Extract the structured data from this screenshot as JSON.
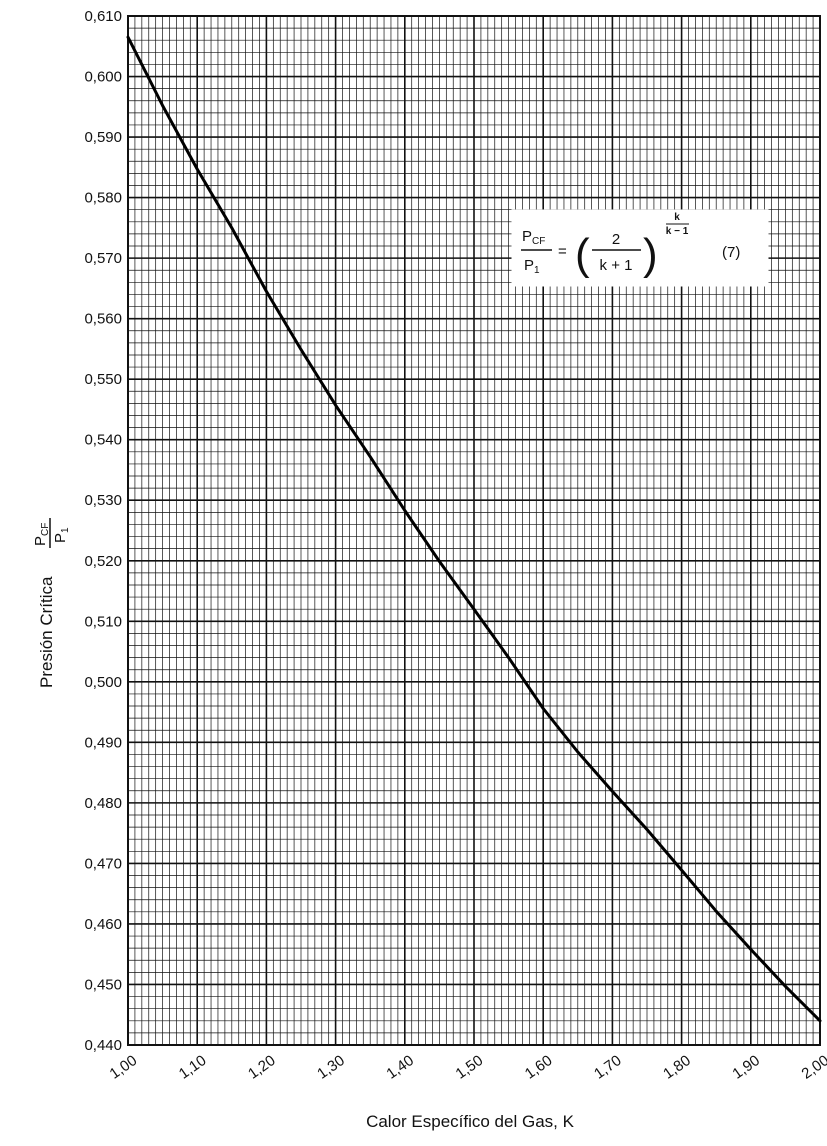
{
  "chart_data": {
    "type": "line",
    "xlabel": "Calor Específico del Gas, K",
    "ylabel_prefix": "Presión Crítica",
    "ylabel_fraction": {
      "numerator": "P",
      "numerator_sub": "CF",
      "denominator": "P",
      "denominator_sub": "1"
    },
    "xlim": [
      1.0,
      2.0
    ],
    "ylim": [
      0.44,
      0.61
    ],
    "x_ticks": [
      "1,00",
      "1,10",
      "1,20",
      "1,30",
      "1,40",
      "1,50",
      "1,60",
      "1,70",
      "1,80",
      "1,90",
      "2,00"
    ],
    "y_ticks": [
      "0,440",
      "0,450",
      "0,460",
      "0,470",
      "0,480",
      "0,490",
      "0,500",
      "0,510",
      "0,520",
      "0,530",
      "0,540",
      "0,550",
      "0,560",
      "0,570",
      "0,580",
      "0,590",
      "0,600",
      "0,610"
    ],
    "grid": true,
    "series": [
      {
        "x": [
          1.0,
          1.05,
          1.1,
          1.15,
          1.2,
          1.25,
          1.3,
          1.35,
          1.4,
          1.45,
          1.5,
          1.55,
          1.6,
          1.65,
          1.7,
          1.75,
          1.8,
          1.85,
          1.9,
          1.95,
          2.0
        ],
        "y": [
          0.6065,
          0.5952,
          0.5847,
          0.575,
          0.5645,
          0.5549,
          0.5457,
          0.5372,
          0.5283,
          0.5199,
          0.512,
          0.504,
          0.4956,
          0.4884,
          0.4819,
          0.4756,
          0.4689,
          0.4621,
          0.4558,
          0.4497,
          0.444
        ]
      }
    ],
    "annotation": {
      "lhs_num": "P",
      "lhs_num_sub": "CF",
      "lhs_den": "P",
      "lhs_den_sub": "1",
      "equals": "=",
      "rhs_num": "2",
      "rhs_den": "k + 1",
      "exp_num": "k",
      "exp_den": "k − 1",
      "eq_number": "(7)"
    }
  }
}
